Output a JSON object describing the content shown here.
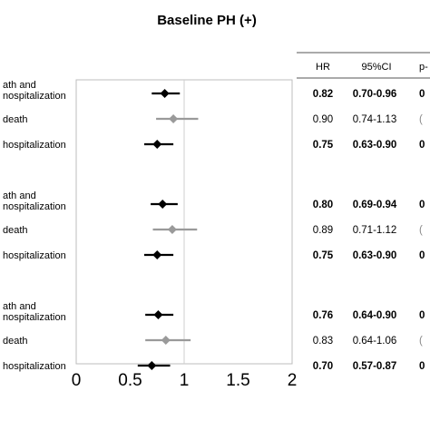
{
  "chart_data": {
    "type": "forest",
    "title": "Baseline PH (+)",
    "xticks": [
      "0",
      "0.5",
      "1",
      "1.5",
      "2"
    ],
    "xlim": [
      0,
      2
    ],
    "reference_line": 1,
    "columns": [
      "HR",
      "95%CI",
      "p-"
    ],
    "series_colors": {
      "composite": "#000000",
      "death": "#9a9a9a"
    },
    "groups": [
      {
        "rows": [
          {
            "label": [
              "ath and",
              "nospitalization"
            ],
            "hr": 0.82,
            "lo": 0.7,
            "hi": 0.96,
            "hr_text": "0.82",
            "ci_text": "0.70-0.96",
            "p_text": "0",
            "bold": true,
            "kind": "composite"
          },
          {
            "label": [
              "death"
            ],
            "hr": 0.9,
            "lo": 0.74,
            "hi": 1.13,
            "hr_text": "0.90",
            "ci_text": "0.74-1.13",
            "p_text": "(",
            "bold": false,
            "kind": "death"
          },
          {
            "label": [
              "hospitalization"
            ],
            "hr": 0.75,
            "lo": 0.63,
            "hi": 0.9,
            "hr_text": "0.75",
            "ci_text": "0.63-0.90",
            "p_text": "0",
            "bold": true,
            "kind": "composite"
          }
        ]
      },
      {
        "rows": [
          {
            "label": [
              "ath and",
              "nospitalization"
            ],
            "hr": 0.8,
            "lo": 0.69,
            "hi": 0.94,
            "hr_text": "0.80",
            "ci_text": "0.69-0.94",
            "p_text": "0",
            "bold": true,
            "kind": "composite"
          },
          {
            "label": [
              "death"
            ],
            "hr": 0.89,
            "lo": 0.71,
            "hi": 1.12,
            "hr_text": "0.89",
            "ci_text": "0.71-1.12",
            "p_text": "(",
            "bold": false,
            "kind": "death"
          },
          {
            "label": [
              "hospitalization"
            ],
            "hr": 0.75,
            "lo": 0.63,
            "hi": 0.9,
            "hr_text": "0.75",
            "ci_text": "0.63-0.90",
            "p_text": "0",
            "bold": true,
            "kind": "composite"
          }
        ]
      },
      {
        "rows": [
          {
            "label": [
              "ath and",
              "nospitalization"
            ],
            "hr": 0.76,
            "lo": 0.64,
            "hi": 0.9,
            "hr_text": "0.76",
            "ci_text": "0.64-0.90",
            "p_text": "0",
            "bold": true,
            "kind": "composite"
          },
          {
            "label": [
              "death"
            ],
            "hr": 0.83,
            "lo": 0.64,
            "hi": 1.06,
            "hr_text": "0.83",
            "ci_text": "0.64-1.06",
            "p_text": "(",
            "bold": false,
            "kind": "death"
          },
          {
            "label": [
              "hospitalization"
            ],
            "hr": 0.7,
            "lo": 0.57,
            "hi": 0.87,
            "hr_text": "0.70",
            "ci_text": "0.57-0.87",
            "p_text": "0",
            "bold": true,
            "kind": "composite"
          }
        ]
      }
    ]
  }
}
